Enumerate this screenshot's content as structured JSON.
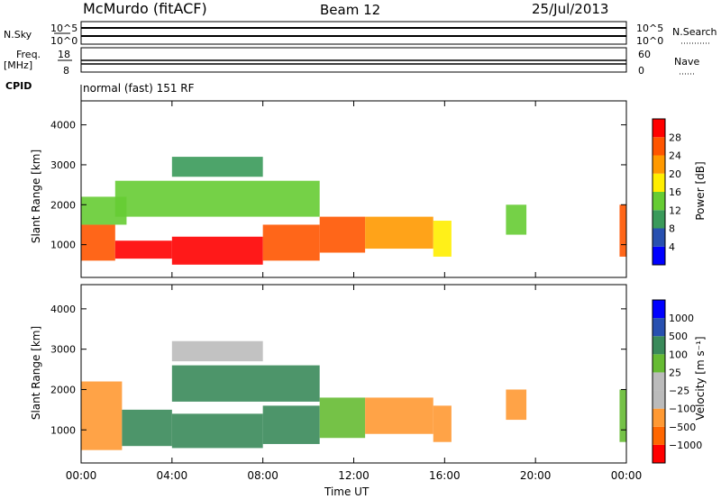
{
  "header": {
    "station": "McMurdo (fitACF)",
    "beam": "Beam 12",
    "date": "25/Jul/2013"
  },
  "top_panels": {
    "nsky_label": "N.Sky",
    "nsky_ticks": [
      "10^5",
      "10^0"
    ],
    "nsearch_label": "N.Search",
    "nsearch_ticks": [
      "10^5",
      "10^0"
    ],
    "freq_label": "Freq.",
    "freq_unit": "[MHz]",
    "freq_ticks": [
      "18",
      "8"
    ],
    "nave_label": "Nave",
    "nave_ticks": [
      "60",
      "0"
    ],
    "cpid_label": "CPID",
    "cpid_value": "normal (fast) 151 RF"
  },
  "colors": {
    "power_scale": [
      "#0000ff",
      "#2850b0",
      "#3a9a5a",
      "#66cc33",
      "#ffee00",
      "#ff9900",
      "#ff5500",
      "#ff0000"
    ],
    "velocity_scale": [
      "#ff0000",
      "#ff6600",
      "#ff9933",
      "#bbbbbb",
      "#bbbbbb",
      "#66bb33",
      "#3a8a5a",
      "#2850b0",
      "#0000ff"
    ]
  },
  "chart_data": [
    {
      "type": "heatmap",
      "quantity": "power",
      "ylabel": "Slant Range [km]",
      "xlim": [
        0,
        24
      ],
      "ylim": [
        180,
        4600
      ],
      "yticks": [
        "1000",
        "2000",
        "3000",
        "4000"
      ],
      "colorbar_label": "Power [dB]",
      "colorbar_ticks": [
        "4",
        "8",
        "12",
        "16",
        "20",
        "24",
        "28"
      ],
      "colorbar_range": [
        0,
        32
      ],
      "regions": [
        {
          "t0": 0.0,
          "t1": 1.5,
          "r0": 600,
          "r1": 1500,
          "value": 26
        },
        {
          "t0": 1.5,
          "t1": 4.0,
          "r0": 650,
          "r1": 1100,
          "value": 28
        },
        {
          "t0": 4.0,
          "t1": 8.0,
          "r0": 500,
          "r1": 1200,
          "value": 29
        },
        {
          "t0": 8.0,
          "t1": 10.5,
          "r0": 600,
          "r1": 1500,
          "value": 27
        },
        {
          "t0": 10.5,
          "t1": 12.5,
          "r0": 800,
          "r1": 1700,
          "value": 24
        },
        {
          "t0": 12.5,
          "t1": 15.5,
          "r0": 900,
          "r1": 1700,
          "value": 22
        },
        {
          "t0": 15.5,
          "t1": 16.3,
          "r0": 700,
          "r1": 1600,
          "value": 16
        },
        {
          "t0": 18.7,
          "t1": 19.6,
          "r0": 1250,
          "r1": 2000,
          "value": 12
        },
        {
          "t0": 23.7,
          "t1": 24.0,
          "r0": 700,
          "r1": 2000,
          "value": 27
        },
        {
          "t0": 0.0,
          "t1": 2.0,
          "r0": 1500,
          "r1": 2200,
          "value": 12
        },
        {
          "t0": 1.5,
          "t1": 10.5,
          "r0": 1700,
          "r1": 2600,
          "value": 14
        },
        {
          "t0": 4.0,
          "t1": 8.0,
          "r0": 2700,
          "r1": 3200,
          "value": 10
        }
      ]
    },
    {
      "type": "heatmap",
      "quantity": "velocity",
      "ylabel": "Slant Range [km]",
      "xlabel": "Time UT",
      "xlim": [
        0,
        24
      ],
      "ylim": [
        180,
        4600
      ],
      "xticks": [
        "00:00",
        "04:00",
        "08:00",
        "12:00",
        "16:00",
        "20:00",
        "00:00"
      ],
      "yticks": [
        "1000",
        "2000",
        "3000",
        "4000"
      ],
      "colorbar_label": "Velocity [m s⁻¹]",
      "colorbar_ticks": [
        "1000",
        "500",
        "100",
        "25",
        "−25",
        "−100",
        "−500",
        "−1000"
      ],
      "regions": [
        {
          "t0": 0.0,
          "t1": 1.8,
          "r0": 500,
          "r1": 2200,
          "value": -400
        },
        {
          "t0": 1.8,
          "t1": 4.0,
          "r0": 600,
          "r1": 1500,
          "value": 150
        },
        {
          "t0": 4.0,
          "t1": 8.0,
          "r0": 550,
          "r1": 1400,
          "value": 200
        },
        {
          "t0": 8.0,
          "t1": 10.5,
          "r0": 650,
          "r1": 1600,
          "value": 150
        },
        {
          "t0": 10.5,
          "t1": 12.5,
          "r0": 800,
          "r1": 1800,
          "value": 80
        },
        {
          "t0": 12.5,
          "t1": 15.5,
          "r0": 900,
          "r1": 1800,
          "value": -400
        },
        {
          "t0": 15.5,
          "t1": 16.3,
          "r0": 700,
          "r1": 1600,
          "value": -300
        },
        {
          "t0": 18.7,
          "t1": 19.6,
          "r0": 1250,
          "r1": 2000,
          "value": -300
        },
        {
          "t0": 23.7,
          "t1": 24.0,
          "r0": 700,
          "r1": 2000,
          "value": 100
        },
        {
          "t0": 4.0,
          "t1": 10.5,
          "r0": 1700,
          "r1": 2600,
          "value": 200
        },
        {
          "t0": 4.0,
          "t1": 8.0,
          "r0": 2700,
          "r1": 3200,
          "value": 20
        }
      ]
    }
  ]
}
